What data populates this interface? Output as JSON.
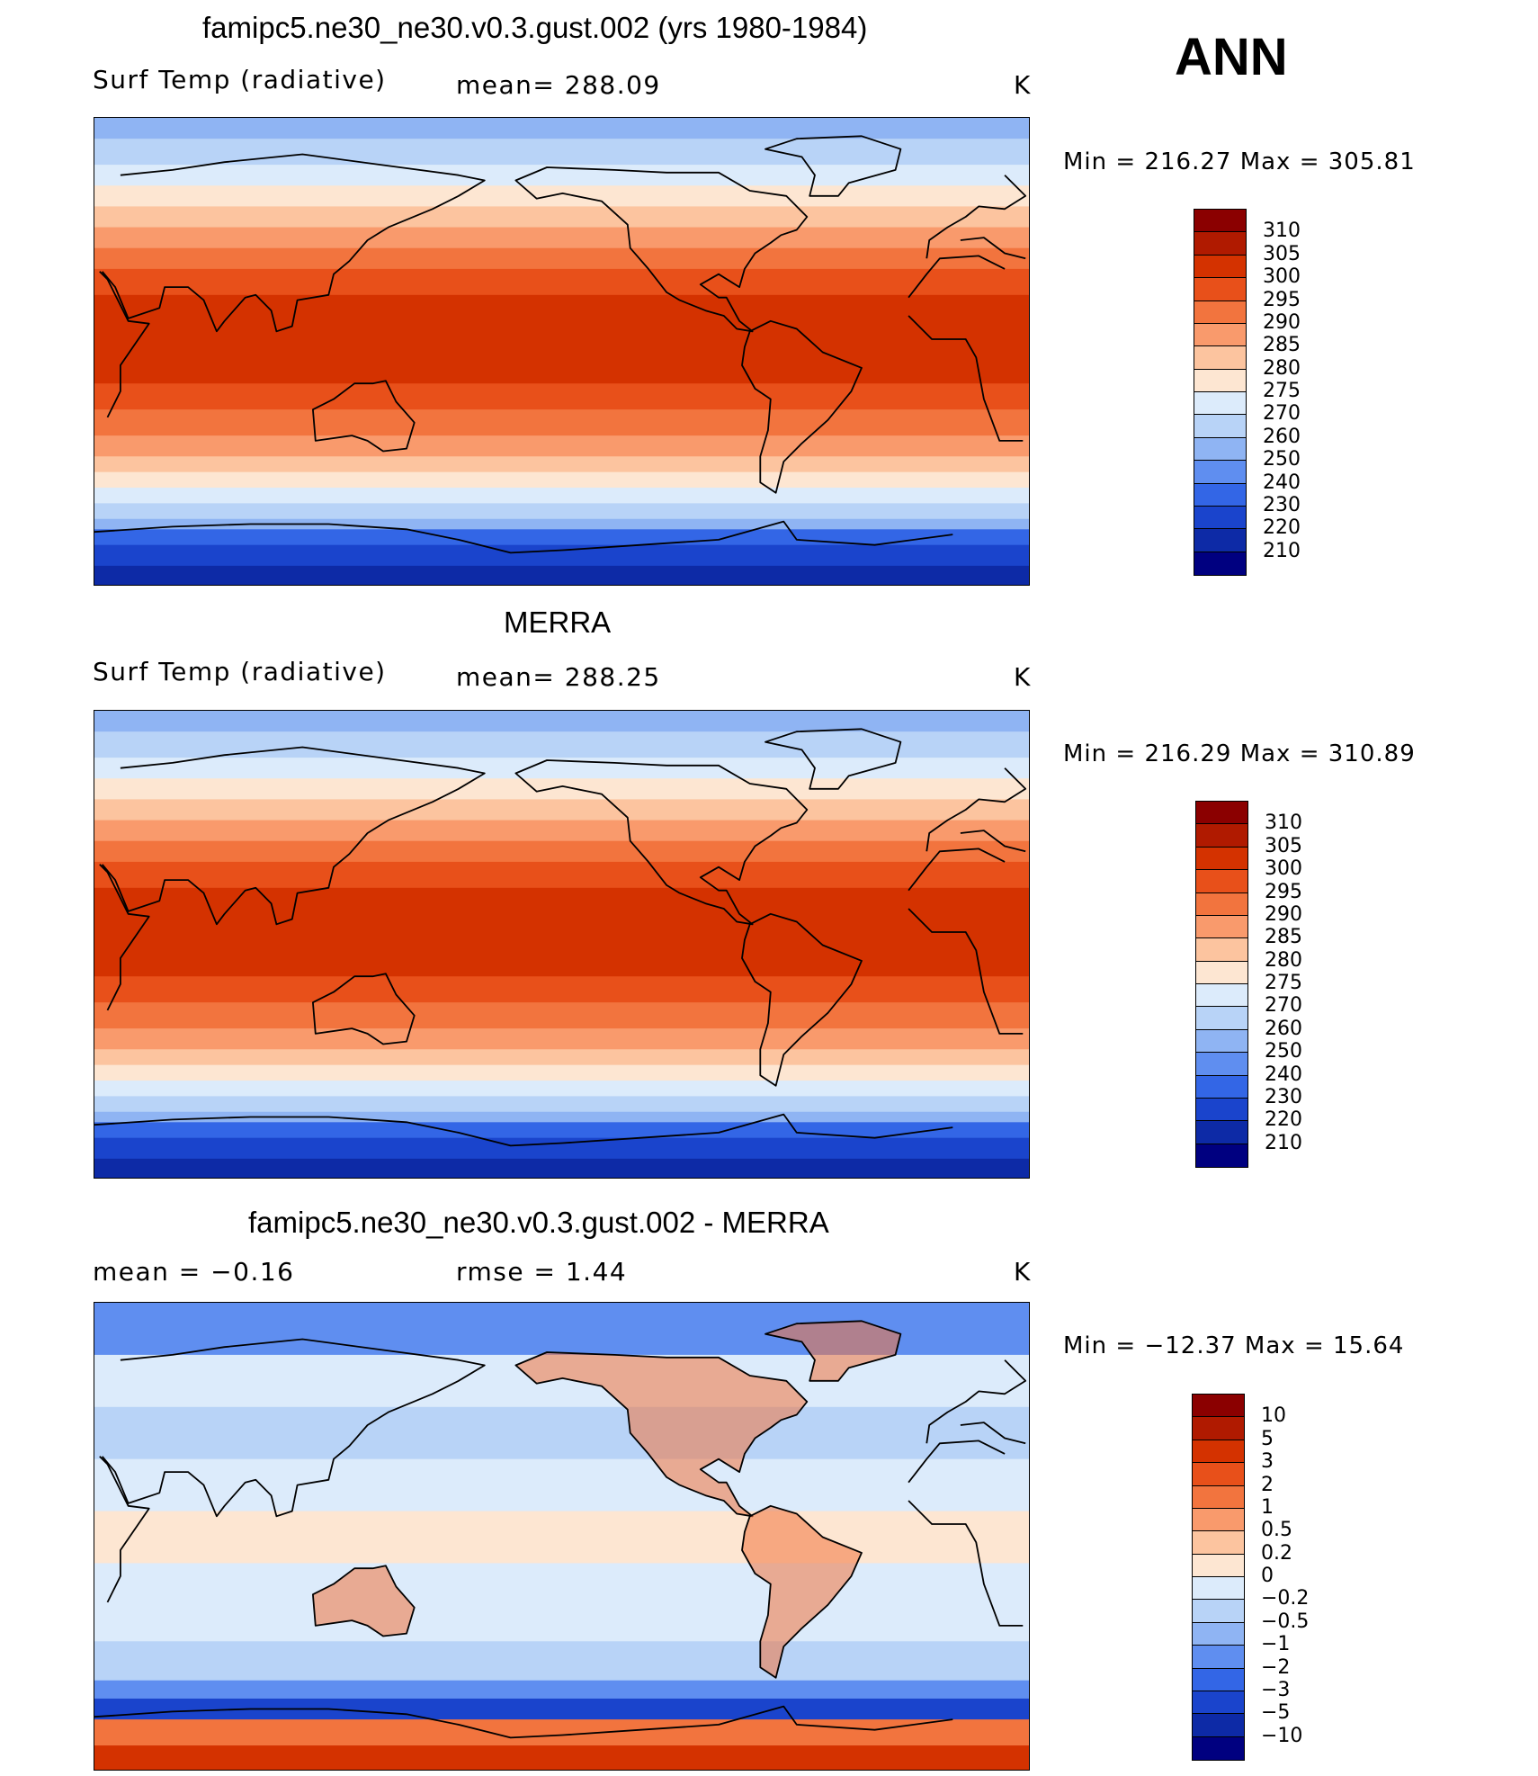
{
  "ann_label": "ANN",
  "panels": [
    {
      "title": "famipc5.ne30_ne30.v0.3.gust.002 (yrs 1980-1984)",
      "left_text": "Surf Temp (radiative)",
      "mid_text": "mean=  288.09",
      "units": "K",
      "minmax": "Min  =  216.27  Max  =  305.81",
      "kind": "abs",
      "mean_value": 288.09,
      "min_value": 216.27,
      "max_value": 305.81
    },
    {
      "title": "MERRA",
      "left_text": "Surf Temp (radiative)",
      "mid_text": "mean=  288.25",
      "units": "K",
      "minmax": "Min  =  216.29  Max  =  310.89",
      "kind": "abs",
      "mean_value": 288.25,
      "min_value": 216.29,
      "max_value": 310.89
    },
    {
      "title": "famipc5.ne30_ne30.v0.3.gust.002 - MERRA",
      "left_text": "mean  =    −0.16",
      "mid_text": "rmse  =     1.44",
      "units": "K",
      "minmax": "Min  =  −12.37  Max  =    15.64",
      "kind": "diff",
      "mean_value": -0.16,
      "rmse_value": 1.44,
      "min_value": -12.37,
      "max_value": 15.64
    }
  ],
  "colorbars": {
    "abs": {
      "labels": [
        "310",
        "305",
        "300",
        "295",
        "290",
        "285",
        "280",
        "275",
        "270",
        "260",
        "250",
        "240",
        "230",
        "220",
        "210"
      ],
      "colors": [
        "#8b0000",
        "#b01a00",
        "#d43200",
        "#e8501a",
        "#f2743e",
        "#f99a6c",
        "#fcc49f",
        "#fde6d2",
        "#dcebfb",
        "#b8d3f7",
        "#8fb4f3",
        "#5f8ef0",
        "#3366e6",
        "#1a44cc",
        "#0d2aa6",
        "#000080"
      ]
    },
    "diff": {
      "labels": [
        "10",
        "5",
        "3",
        "2",
        "1",
        "0.5",
        "0.2",
        "0",
        "−0.2",
        "−0.5",
        "−1",
        "−2",
        "−3",
        "−5",
        "−10"
      ],
      "colors": [
        "#8b0000",
        "#b01a00",
        "#d43200",
        "#e8501a",
        "#f2743e",
        "#f99a6c",
        "#fcc49f",
        "#fde6d2",
        "#dcebfb",
        "#b8d3f7",
        "#8fb4f3",
        "#5f8ef0",
        "#3366e6",
        "#1a44cc",
        "#0d2aa6",
        "#000080"
      ]
    }
  }
}
